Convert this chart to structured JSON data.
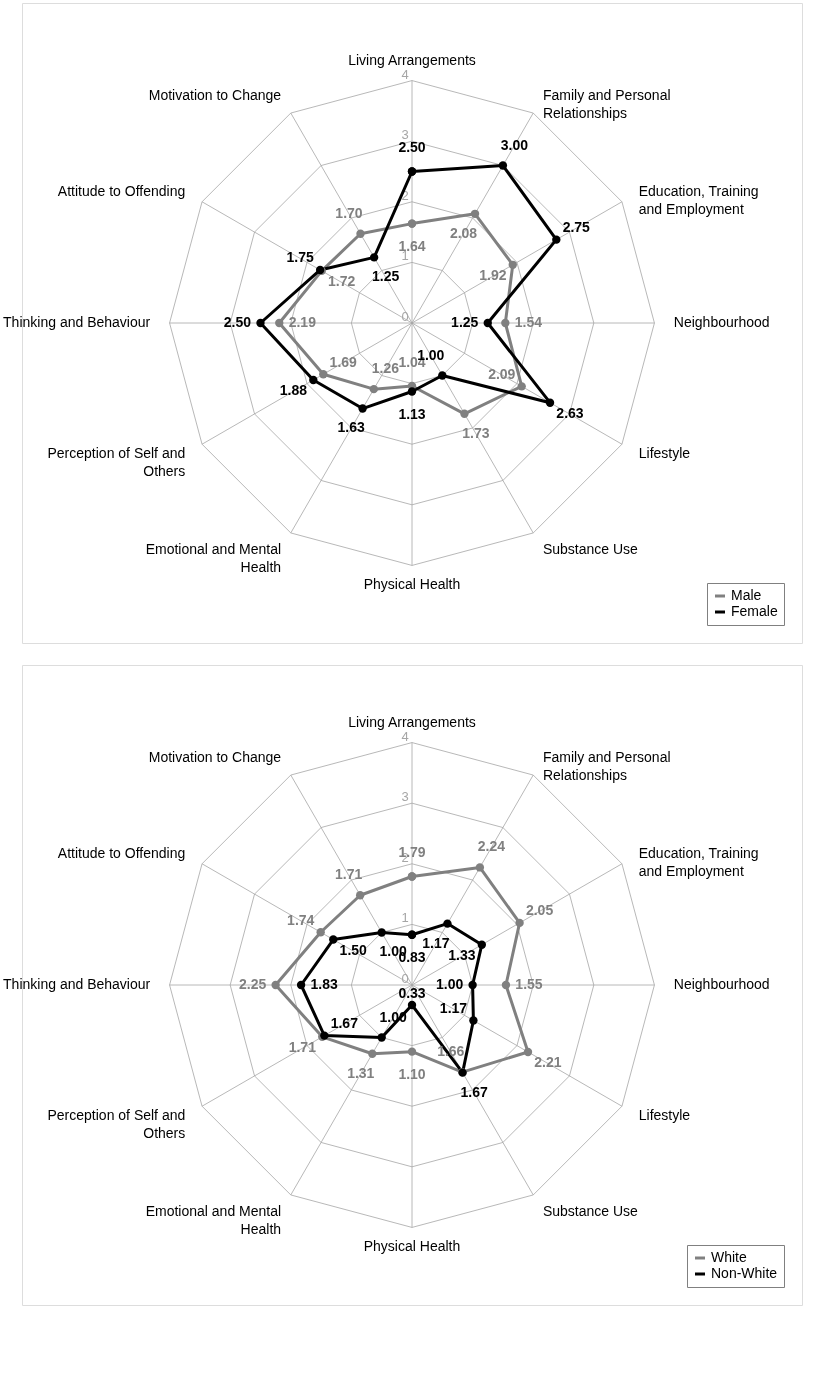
{
  "chart_data": [
    {
      "type": "radar",
      "categories": [
        "Living Arrangements",
        "Family and Personal Relationships",
        "Education, Training and Employment",
        "Neighbourhood",
        "Lifestyle",
        "Substance Use",
        "Physical Health",
        "Emotional and Mental Health",
        "Perception of Self and Others",
        "Thinking and Behaviour",
        "Attitude to Offending",
        "Motivation to Change"
      ],
      "series": [
        {
          "name": "Male",
          "color": "#808080",
          "values": [
            1.64,
            2.08,
            1.92,
            1.54,
            2.09,
            1.73,
            1.04,
            1.26,
            1.69,
            2.19,
            1.72,
            1.7
          ],
          "value_labels": [
            "1.64",
            "2.08",
            "1.92",
            "1.54",
            "2.09",
            "1.73",
            "1.04",
            "1.26",
            "1.69",
            "2.19",
            "1.72",
            "1.70"
          ]
        },
        {
          "name": "Female",
          "color": "#000000",
          "values": [
            2.5,
            3.0,
            2.75,
            1.25,
            2.63,
            1.0,
            1.13,
            1.63,
            1.88,
            2.5,
            1.75,
            1.25
          ],
          "value_labels": [
            "2.50",
            "3.00",
            "2.75",
            "1.25",
            "2.63",
            "1.00",
            "1.13",
            "1.63",
            "1.88",
            "2.50",
            "1.75",
            "1.25"
          ]
        }
      ],
      "ylim": [
        0,
        4
      ],
      "yticks": [
        0,
        1,
        2,
        3,
        4
      ],
      "grid": true,
      "legend": "bottom right",
      "marker": "circle"
    },
    {
      "type": "radar",
      "categories": [
        "Living Arrangements",
        "Family and Personal Relationships",
        "Education, Training and Employment",
        "Neighbourhood",
        "Lifestyle",
        "Substance Use",
        "Physical Health",
        "Emotional and Mental Health",
        "Perception of Self and Others",
        "Thinking and Behaviour",
        "Attitude to Offending",
        "Motivation to Change"
      ],
      "series": [
        {
          "name": "White",
          "color": "#808080",
          "values": [
            1.79,
            2.24,
            2.05,
            1.55,
            2.21,
            1.66,
            1.1,
            1.31,
            1.71,
            2.25,
            1.74,
            1.71
          ],
          "value_labels": [
            "1.79",
            "2.24",
            "2.05",
            "1.55",
            "2.21",
            "1.66",
            "1.10",
            "1.31",
            "1.71",
            "2.25",
            "1.74",
            "1.71"
          ]
        },
        {
          "name": "Non-White",
          "color": "#000000",
          "values": [
            0.83,
            1.17,
            1.33,
            1.0,
            1.17,
            1.67,
            0.33,
            1.0,
            1.67,
            1.83,
            1.5,
            1.0
          ],
          "value_labels": [
            "0.83",
            "1.17",
            "1.33",
            "1.00",
            "1.17",
            "1.67",
            "0.33",
            "1.00",
            "1.67",
            "1.83",
            "1.50",
            "1.00"
          ]
        }
      ],
      "ylim": [
        0,
        4
      ],
      "yticks": [
        0,
        1,
        2,
        3,
        4
      ],
      "grid": true,
      "legend": "bottom right",
      "marker": "circle"
    }
  ]
}
